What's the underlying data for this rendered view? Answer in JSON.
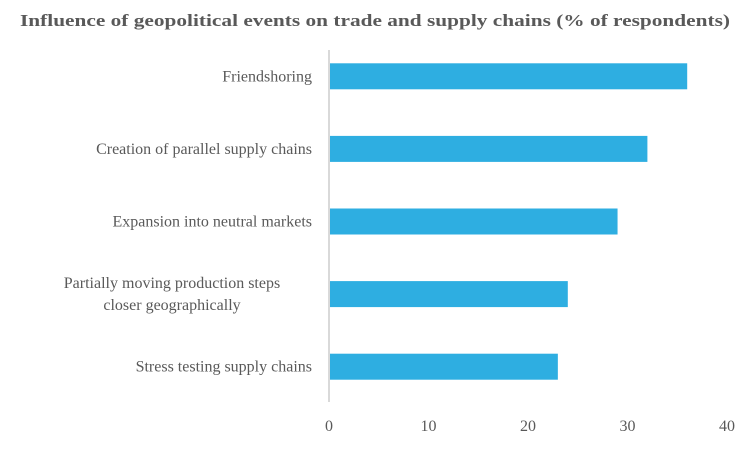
{
  "chart_data": {
    "type": "bar",
    "orientation": "horizontal",
    "title": "Influence of geopolitical events on trade and supply chains (% of respondents)",
    "categories": [
      [
        "Friendshoring"
      ],
      [
        "Creation of parallel supply chains"
      ],
      [
        "Expansion into neutral markets"
      ],
      [
        "Partially moving production steps",
        "closer geographically"
      ],
      [
        "Stress testing supply chains"
      ]
    ],
    "values": [
      36,
      32,
      29,
      24,
      23
    ],
    "xlim": [
      0,
      40
    ],
    "xticks": [
      "0",
      "10",
      "20",
      "30",
      "40"
    ],
    "tick_values": [
      0,
      10,
      20,
      30,
      40
    ],
    "xlabel": "",
    "ylabel": "",
    "grid": false,
    "bar_color": "#2EAEE1",
    "axis_color": "#D9D9D9"
  }
}
